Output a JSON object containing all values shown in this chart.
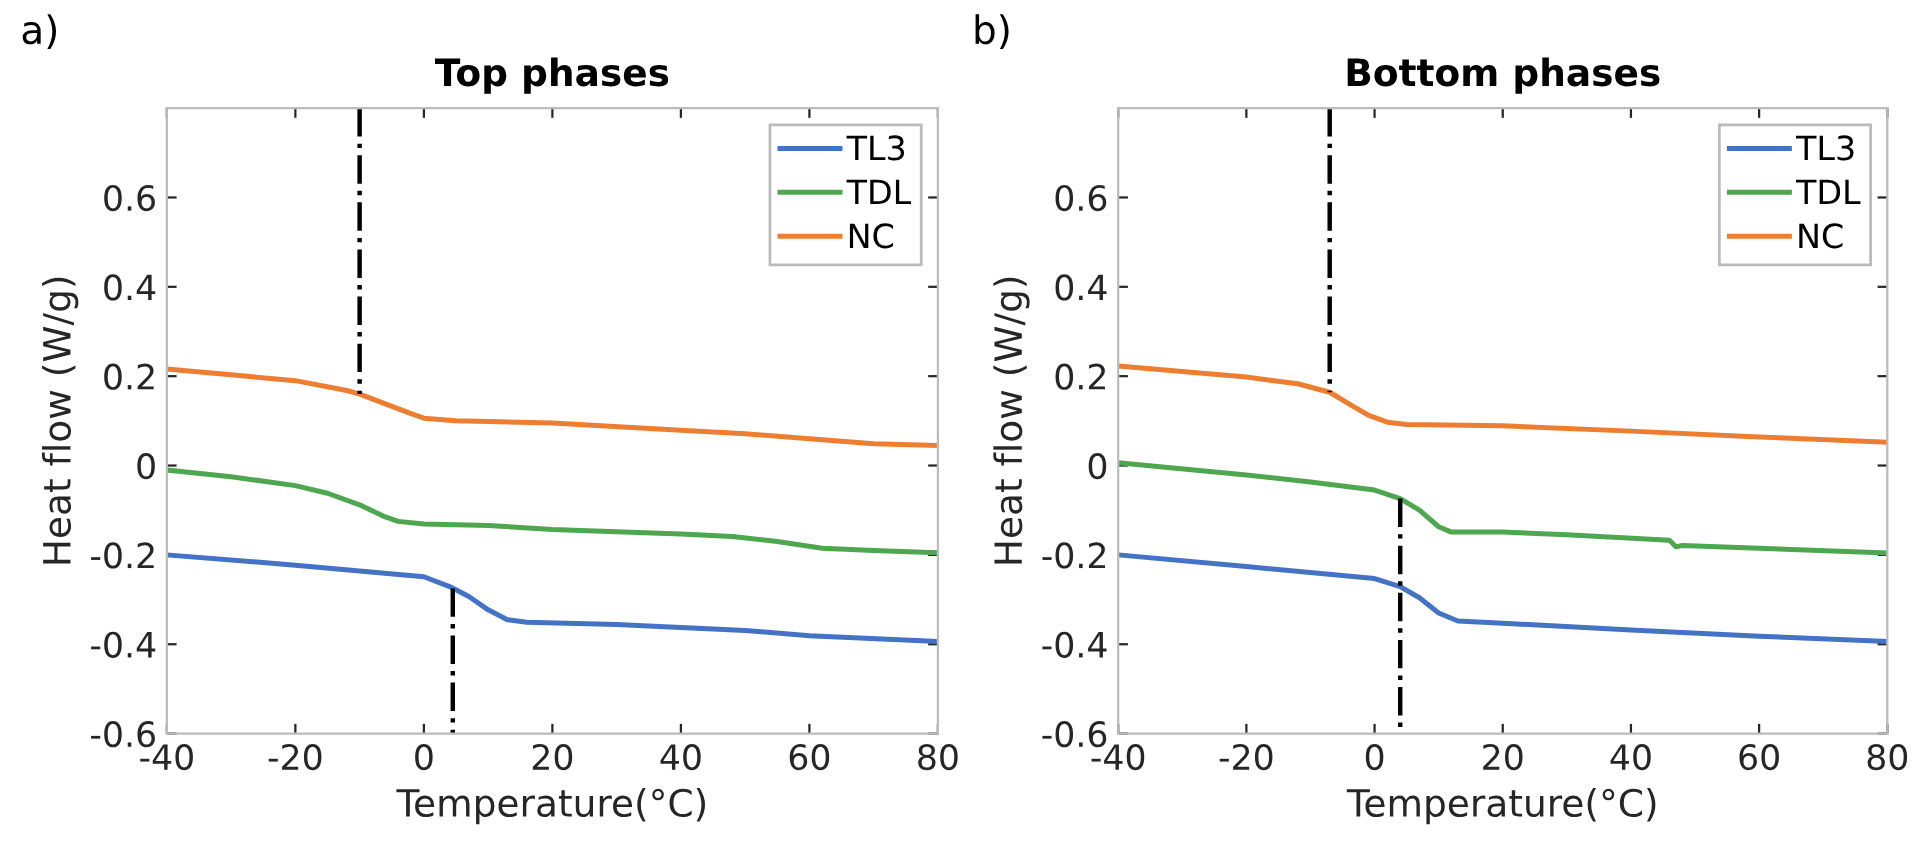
{
  "chart_data": [
    {
      "type": "line",
      "title": "Top phases",
      "xlabel": "Temperature(°C)",
      "ylabel": "Heat flow (W/g)",
      "annotations": [
        "a)"
      ],
      "xlim": [
        -40,
        80
      ],
      "xticks": [
        -40,
        -20,
        0,
        20,
        40,
        60,
        80
      ],
      "ylim": [
        -0.6,
        0.8
      ],
      "yticks": [
        -0.6,
        -0.4,
        -0.2,
        0,
        0.2,
        0.4,
        0.6
      ],
      "grid": false,
      "legend": "top right",
      "marker": "none",
      "series": [
        {
          "name": "TL3",
          "color": "#4472c4",
          "x": [
            -40,
            -20,
            0,
            4,
            7,
            10,
            13,
            16,
            30,
            50,
            60,
            80
          ],
          "values": [
            -0.2,
            -0.223,
            -0.249,
            -0.271,
            -0.293,
            -0.323,
            -0.345,
            -0.351,
            -0.356,
            -0.369,
            -0.381,
            -0.394
          ]
        },
        {
          "name": "TDL",
          "color": "#4ea64f",
          "x": [
            -40,
            -30,
            -20,
            -15,
            -10,
            -6,
            -4,
            0,
            10,
            20,
            40,
            48,
            55,
            62,
            70,
            80
          ],
          "values": [
            -0.01,
            -0.025,
            -0.045,
            -0.062,
            -0.088,
            -0.115,
            -0.125,
            -0.131,
            -0.134,
            -0.143,
            -0.153,
            -0.159,
            -0.17,
            -0.185,
            -0.19,
            -0.195
          ]
        },
        {
          "name": "NC",
          "color": "#ed7d31",
          "x": [
            -40,
            -20,
            -12,
            -10,
            -6,
            -2,
            0,
            5,
            20,
            40,
            50,
            60,
            70,
            80
          ],
          "values": [
            0.216,
            0.19,
            0.168,
            0.16,
            0.138,
            0.116,
            0.106,
            0.1,
            0.095,
            0.079,
            0.071,
            0.06,
            0.049,
            0.045
          ]
        },
        {
          "color": "#000000",
          "line_style": "dashdot",
          "x": [
            -10,
            -10
          ],
          "values": [
            0.8,
            0.16
          ]
        },
        {
          "color": "#000000",
          "line_style": "dashdot",
          "x": [
            4.5,
            4.5
          ],
          "values": [
            -0.275,
            -0.6
          ]
        }
      ]
    },
    {
      "type": "line",
      "title": "Bottom phases",
      "xlabel": "Temperature(°C)",
      "ylabel": "Heat flow (W/g)",
      "annotations": [
        "b)"
      ],
      "xlim": [
        -40,
        80
      ],
      "xticks": [
        -40,
        -20,
        0,
        20,
        40,
        60,
        80
      ],
      "ylim": [
        -0.6,
        0.8
      ],
      "yticks": [
        -0.6,
        -0.4,
        -0.2,
        0,
        0.2,
        0.4,
        0.6
      ],
      "grid": false,
      "legend": "top right",
      "marker": "none",
      "series": [
        {
          "name": "TL3",
          "color": "#4472c4",
          "x": [
            -40,
            -20,
            0,
            4,
            7,
            10,
            13,
            20,
            40,
            60,
            80
          ],
          "values": [
            -0.2,
            -0.226,
            -0.253,
            -0.271,
            -0.296,
            -0.33,
            -0.348,
            -0.353,
            -0.368,
            -0.382,
            -0.394
          ]
        },
        {
          "name": "TDL",
          "color": "#4ea64f",
          "x": [
            -40,
            -20,
            -10,
            0,
            4,
            7,
            10,
            12,
            20,
            30,
            46,
            47,
            48,
            60,
            80
          ],
          "values": [
            0.006,
            -0.021,
            -0.037,
            -0.055,
            -0.074,
            -0.1,
            -0.137,
            -0.149,
            -0.149,
            -0.155,
            -0.167,
            -0.182,
            -0.179,
            -0.185,
            -0.196
          ]
        },
        {
          "name": "NC",
          "color": "#ed7d31",
          "x": [
            -40,
            -20,
            -12,
            -7,
            -4,
            -1,
            2,
            5,
            20,
            40,
            60,
            80
          ],
          "values": [
            0.223,
            0.198,
            0.183,
            0.164,
            0.138,
            0.113,
            0.097,
            0.092,
            0.089,
            0.077,
            0.064,
            0.052
          ]
        },
        {
          "color": "#000000",
          "line_style": "dashdot",
          "x": [
            -7,
            -7
          ],
          "values": [
            0.8,
            0.164
          ]
        },
        {
          "color": "#000000",
          "line_style": "dashdot",
          "x": [
            4,
            4
          ],
          "values": [
            -0.074,
            -0.6
          ]
        }
      ]
    }
  ]
}
